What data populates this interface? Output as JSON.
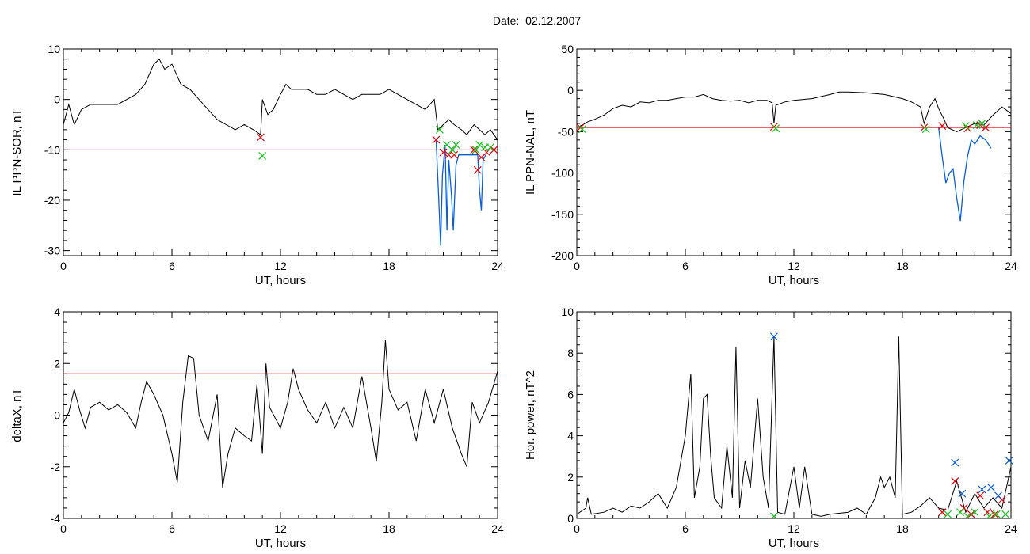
{
  "title": "Date:  02.12.2007",
  "colors": {
    "trace": "#000000",
    "threshold": "#e8000b",
    "highlight": "#0a5fd8",
    "marker_red": "#e8000b",
    "marker_green": "#17c21f",
    "marker_blue": "#0a5fd8"
  },
  "chart_data": [
    {
      "type": "line",
      "xlabel": "UT, hours",
      "ylabel": "IL PPN-SOR, nT",
      "xlim": [
        0,
        24
      ],
      "ylim": [
        -31,
        10
      ],
      "xticks": [
        0,
        6,
        12,
        18,
        24
      ],
      "yticks": [
        10,
        0,
        -10,
        -20,
        -30
      ],
      "threshold": -10,
      "series_points": [
        [
          0,
          -5
        ],
        [
          0.3,
          -1
        ],
        [
          0.6,
          -5
        ],
        [
          1,
          -2
        ],
        [
          1.5,
          -1
        ],
        [
          2,
          -1
        ],
        [
          2.5,
          -1
        ],
        [
          3,
          -1
        ],
        [
          3.5,
          0
        ],
        [
          4,
          1
        ],
        [
          4.5,
          3
        ],
        [
          5,
          7
        ],
        [
          5.3,
          8
        ],
        [
          5.6,
          6
        ],
        [
          6,
          7
        ],
        [
          6.5,
          3
        ],
        [
          7,
          2
        ],
        [
          7.5,
          0
        ],
        [
          8,
          -2
        ],
        [
          8.5,
          -4
        ],
        [
          9,
          -5
        ],
        [
          9.5,
          -6
        ],
        [
          10,
          -5
        ],
        [
          10.5,
          -6
        ],
        [
          10.9,
          -7
        ],
        [
          11,
          0
        ],
        [
          11.3,
          -3
        ],
        [
          11.6,
          -2
        ],
        [
          12,
          1
        ],
        [
          12.3,
          3
        ],
        [
          12.6,
          2
        ],
        [
          13,
          2
        ],
        [
          13.5,
          2
        ],
        [
          14,
          1
        ],
        [
          14.5,
          1
        ],
        [
          15,
          2
        ],
        [
          15.5,
          1
        ],
        [
          16,
          0
        ],
        [
          16.5,
          1
        ],
        [
          17,
          1
        ],
        [
          17.5,
          1
        ],
        [
          18,
          2
        ],
        [
          18.5,
          1
        ],
        [
          19,
          0
        ],
        [
          19.5,
          -1
        ],
        [
          20,
          -2
        ],
        [
          20.5,
          0
        ],
        [
          20.7,
          -6
        ],
        [
          21,
          -5
        ],
        [
          21.3,
          -4
        ],
        [
          21.6,
          -5
        ],
        [
          22,
          -6
        ],
        [
          22.3,
          -7
        ],
        [
          22.7,
          -5
        ],
        [
          23,
          -6
        ],
        [
          23.3,
          -7
        ],
        [
          23.6,
          -6
        ],
        [
          24,
          -8
        ]
      ],
      "highlight_points": [
        [
          20.6,
          -8
        ],
        [
          20.75,
          -20
        ],
        [
          20.85,
          -29
        ],
        [
          20.95,
          -15
        ],
        [
          21.1,
          -9
        ],
        [
          21.2,
          -26
        ],
        [
          21.3,
          -12
        ],
        [
          21.45,
          -19
        ],
        [
          21.55,
          -26
        ],
        [
          21.7,
          -13
        ],
        [
          21.85,
          -11
        ],
        [
          22.9,
          -11
        ],
        [
          23.0,
          -18
        ],
        [
          23.1,
          -22
        ],
        [
          23.2,
          -12
        ],
        [
          23.35,
          -11
        ]
      ],
      "markers_red": [
        [
          10.9,
          -7.5
        ],
        [
          20.6,
          -8
        ],
        [
          21.0,
          -10.5
        ],
        [
          21.3,
          -11
        ],
        [
          21.6,
          -11
        ],
        [
          22.7,
          -10
        ],
        [
          22.9,
          -14
        ],
        [
          23.1,
          -11.5
        ],
        [
          23.4,
          -10.5
        ],
        [
          23.8,
          -10
        ]
      ],
      "markers_green": [
        [
          11.0,
          -11.2
        ],
        [
          20.8,
          -6
        ],
        [
          21.2,
          -9
        ],
        [
          21.5,
          -10
        ],
        [
          21.7,
          -9
        ],
        [
          22.8,
          -10
        ],
        [
          23.0,
          -9
        ],
        [
          23.3,
          -9.5
        ],
        [
          23.6,
          -9.5
        ]
      ]
    },
    {
      "type": "line",
      "xlabel": "UT, hours",
      "ylabel": "IL PPN-NAL, nT",
      "xlim": [
        0,
        24
      ],
      "ylim": [
        -200,
        50
      ],
      "xticks": [
        0,
        6,
        12,
        18,
        24
      ],
      "yticks": [
        50,
        0,
        -50,
        -100,
        -150,
        -200
      ],
      "threshold": -45,
      "series_points": [
        [
          0,
          -45
        ],
        [
          0.3,
          -42
        ],
        [
          0.6,
          -38
        ],
        [
          1,
          -35
        ],
        [
          1.5,
          -30
        ],
        [
          2,
          -22
        ],
        [
          2.5,
          -18
        ],
        [
          3,
          -20
        ],
        [
          3.5,
          -14
        ],
        [
          4,
          -15
        ],
        [
          4.5,
          -12
        ],
        [
          5,
          -12
        ],
        [
          5.5,
          -10
        ],
        [
          6,
          -8
        ],
        [
          6.5,
          -8
        ],
        [
          7,
          -5
        ],
        [
          7.5,
          -10
        ],
        [
          8,
          -12
        ],
        [
          8.5,
          -13
        ],
        [
          9,
          -12
        ],
        [
          9.5,
          -15
        ],
        [
          10,
          -12
        ],
        [
          10.5,
          -12
        ],
        [
          10.8,
          -15
        ],
        [
          10.9,
          -40
        ],
        [
          11,
          -18
        ],
        [
          11.5,
          -14
        ],
        [
          12,
          -12
        ],
        [
          13,
          -10
        ],
        [
          14,
          -5
        ],
        [
          14.5,
          -2
        ],
        [
          15,
          -2
        ],
        [
          16,
          -3
        ],
        [
          17,
          -5
        ],
        [
          18,
          -10
        ],
        [
          18.5,
          -14
        ],
        [
          19,
          -20
        ],
        [
          19.2,
          -40
        ],
        [
          19.5,
          -20
        ],
        [
          19.8,
          -10
        ],
        [
          20,
          -22
        ],
        [
          20.3,
          -35
        ],
        [
          20.5,
          -45
        ],
        [
          21,
          -50
        ],
        [
          21.5,
          -45
        ],
        [
          22,
          -40
        ],
        [
          22.5,
          -42
        ],
        [
          23,
          -30
        ],
        [
          23.5,
          -20
        ],
        [
          24,
          -28
        ]
      ],
      "highlight_points": [
        [
          20.0,
          -45
        ],
        [
          20.2,
          -80
        ],
        [
          20.4,
          -112
        ],
        [
          20.6,
          -100
        ],
        [
          20.8,
          -95
        ],
        [
          21.0,
          -130
        ],
        [
          21.2,
          -158
        ],
        [
          21.4,
          -110
        ],
        [
          21.6,
          -80
        ],
        [
          21.8,
          -60
        ],
        [
          22.0,
          -65
        ],
        [
          22.3,
          -55
        ],
        [
          22.6,
          -60
        ],
        [
          22.9,
          -70
        ]
      ],
      "markers_red": [
        [
          0.2,
          -45
        ],
        [
          10.9,
          -44
        ],
        [
          19.2,
          -45
        ],
        [
          20.2,
          -43
        ],
        [
          21.6,
          -46
        ],
        [
          22.3,
          -42
        ],
        [
          22.6,
          -45
        ]
      ],
      "markers_green": [
        [
          0.3,
          -47
        ],
        [
          11.0,
          -46
        ],
        [
          19.3,
          -47
        ],
        [
          21.5,
          -43
        ],
        [
          22.1,
          -42
        ],
        [
          22.4,
          -40
        ]
      ]
    },
    {
      "type": "line",
      "xlabel": "UT, hours",
      "ylabel": "deltaX, nT",
      "xlim": [
        0,
        24
      ],
      "ylim": [
        -4,
        4
      ],
      "xticks": [
        0,
        6,
        12,
        18,
        24
      ],
      "yticks": [
        4,
        2,
        0,
        -2,
        -4
      ],
      "threshold": 1.6,
      "series_points": [
        [
          0,
          -0.3
        ],
        [
          0.3,
          0.1
        ],
        [
          0.6,
          1
        ],
        [
          0.9,
          0.2
        ],
        [
          1.2,
          -0.5
        ],
        [
          1.5,
          0.3
        ],
        [
          2,
          0.5
        ],
        [
          2.5,
          0.2
        ],
        [
          3,
          0.4
        ],
        [
          3.5,
          0.1
        ],
        [
          4,
          -0.5
        ],
        [
          4.3,
          0.5
        ],
        [
          4.6,
          1.3
        ],
        [
          5,
          0.8
        ],
        [
          5.5,
          0
        ],
        [
          6,
          -1.5
        ],
        [
          6.3,
          -2.6
        ],
        [
          6.6,
          0.5
        ],
        [
          6.9,
          2.3
        ],
        [
          7.2,
          2.2
        ],
        [
          7.5,
          0
        ],
        [
          8,
          -1
        ],
        [
          8.5,
          0.8
        ],
        [
          8.8,
          -2.8
        ],
        [
          9.1,
          -1.5
        ],
        [
          9.5,
          -0.5
        ],
        [
          10,
          -0.8
        ],
        [
          10.4,
          -1
        ],
        [
          10.7,
          1.2
        ],
        [
          11,
          -1.5
        ],
        [
          11.2,
          2
        ],
        [
          11.4,
          0.3
        ],
        [
          12,
          -0.5
        ],
        [
          12.4,
          0.5
        ],
        [
          12.7,
          1.8
        ],
        [
          13,
          1
        ],
        [
          13.5,
          0.2
        ],
        [
          14,
          -0.3
        ],
        [
          14.5,
          0.5
        ],
        [
          15,
          -0.5
        ],
        [
          15.5,
          0.3
        ],
        [
          16,
          -0.5
        ],
        [
          16.5,
          1.5
        ],
        [
          17,
          -0.5
        ],
        [
          17.3,
          -1.8
        ],
        [
          17.6,
          0.5
        ],
        [
          17.8,
          2.9
        ],
        [
          18,
          1
        ],
        [
          18.5,
          0.2
        ],
        [
          19,
          0.5
        ],
        [
          19.5,
          -1
        ],
        [
          20,
          1
        ],
        [
          20.5,
          -0.3
        ],
        [
          21,
          1
        ],
        [
          21.5,
          -0.5
        ],
        [
          22,
          -1.5
        ],
        [
          22.3,
          -2
        ],
        [
          22.6,
          0.5
        ],
        [
          23,
          -0.3
        ],
        [
          23.5,
          0.5
        ],
        [
          24,
          1.7
        ]
      ],
      "highlight_points": [],
      "markers_red": [],
      "markers_green": []
    },
    {
      "type": "line",
      "xlabel": "UT, hours",
      "ylabel": "Hor. power, nT^2",
      "xlim": [
        0,
        24
      ],
      "ylim": [
        0,
        10
      ],
      "xticks": [
        0,
        6,
        12,
        18,
        24
      ],
      "yticks": [
        10,
        8,
        6,
        4,
        2,
        0
      ],
      "threshold": null,
      "series_points": [
        [
          0,
          0.2
        ],
        [
          0.5,
          0.5
        ],
        [
          0.6,
          1
        ],
        [
          0.8,
          0.2
        ],
        [
          1.5,
          0.3
        ],
        [
          2,
          0.5
        ],
        [
          2.5,
          0.3
        ],
        [
          3,
          0.6
        ],
        [
          3.5,
          0.5
        ],
        [
          4,
          0.8
        ],
        [
          4.5,
          1.2
        ],
        [
          5,
          0.5
        ],
        [
          5.5,
          1.5
        ],
        [
          5.8,
          3
        ],
        [
          6,
          4
        ],
        [
          6.3,
          7
        ],
        [
          6.5,
          1
        ],
        [
          6.8,
          2.5
        ],
        [
          7,
          5.8
        ],
        [
          7.2,
          6
        ],
        [
          7.4,
          3
        ],
        [
          7.6,
          1
        ],
        [
          8,
          0.5
        ],
        [
          8.3,
          3.5
        ],
        [
          8.6,
          1
        ],
        [
          8.8,
          8.3
        ],
        [
          9,
          0.5
        ],
        [
          9.3,
          2.8
        ],
        [
          9.6,
          1.5
        ],
        [
          10,
          5.8
        ],
        [
          10.3,
          2
        ],
        [
          10.6,
          0.5
        ],
        [
          10.9,
          8.8
        ],
        [
          11.1,
          0.3
        ],
        [
          11.5,
          0.2
        ],
        [
          12,
          2.5
        ],
        [
          12.3,
          0.5
        ],
        [
          12.6,
          2.5
        ],
        [
          13,
          0.2
        ],
        [
          13.5,
          0.1
        ],
        [
          14,
          0.2
        ],
        [
          15,
          0.3
        ],
        [
          15.5,
          0.5
        ],
        [
          16,
          0.2
        ],
        [
          16.5,
          1
        ],
        [
          16.8,
          2
        ],
        [
          17,
          1.5
        ],
        [
          17.3,
          2
        ],
        [
          17.6,
          1
        ],
        [
          17.8,
          8.8
        ],
        [
          18,
          0.2
        ],
        [
          18.5,
          0.3
        ],
        [
          19,
          0.6
        ],
        [
          19.5,
          1
        ],
        [
          20,
          0.5
        ],
        [
          20.5,
          0.4
        ],
        [
          21,
          1.8
        ],
        [
          21.5,
          0.3
        ],
        [
          22,
          1.2
        ],
        [
          22.5,
          0.5
        ],
        [
          23,
          1
        ],
        [
          23.5,
          0.5
        ],
        [
          24,
          2.5
        ]
      ],
      "highlight_points": [],
      "markers_red": [
        [
          20.2,
          0.3
        ],
        [
          20.9,
          1.8
        ],
        [
          21.4,
          0.5
        ],
        [
          21.8,
          0.2
        ],
        [
          22.3,
          1.1
        ],
        [
          22.7,
          0.3
        ],
        [
          23.1,
          0.2
        ],
        [
          23.5,
          0.9
        ]
      ],
      "markers_green": [
        [
          10.9,
          0.1
        ],
        [
          20.5,
          0.2
        ],
        [
          21.2,
          0.3
        ],
        [
          21.6,
          0.1
        ],
        [
          22.0,
          0.3
        ],
        [
          22.8,
          0.1
        ],
        [
          23.2,
          0.2
        ],
        [
          23.7,
          0.2
        ]
      ],
      "markers_blue": [
        [
          10.9,
          8.8
        ],
        [
          20.9,
          2.7
        ],
        [
          21.3,
          1.2
        ],
        [
          22.4,
          1.4
        ],
        [
          22.9,
          1.5
        ],
        [
          23.3,
          1.1
        ],
        [
          23.9,
          2.8
        ]
      ]
    }
  ]
}
